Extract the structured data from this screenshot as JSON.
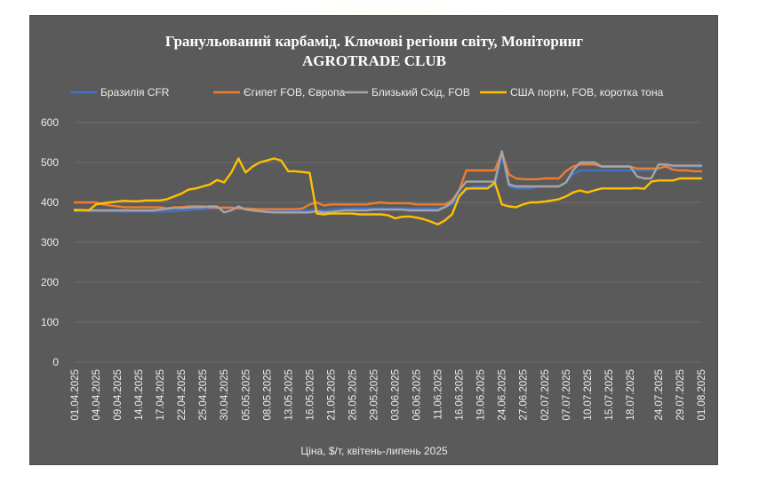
{
  "chart_data": {
    "type": "line",
    "title": "Гранульований карбамід. Ключові регіони світу, Моніторинг",
    "subtitle": "AGROTRADE CLUB",
    "xlabel": "Ціна, $/т, квітень-липень 2025",
    "ylabel": "",
    "ylim": [
      0,
      600
    ],
    "yticks": [
      "0",
      "100",
      "200",
      "300",
      "400",
      "500",
      "600"
    ],
    "grid": true,
    "legend_position": "top",
    "x": [
      "01.04.2025",
      "02.04.2025",
      "03.04.2025",
      "04.04.2025",
      "07.04.2025",
      "08.04.2025",
      "09.04.2025",
      "10.04.2025",
      "11.04.2025",
      "14.04.2025",
      "15.04.2025",
      "16.04.2025",
      "17.04.2025",
      "18.04.2025",
      "21.04.2025",
      "22.04.2025",
      "23.04.2025",
      "24.04.2025",
      "25.04.2025",
      "28.04.2025",
      "29.04.2025",
      "30.04.2025",
      "01.05.2025",
      "02.05.2025",
      "05.05.2025",
      "06.05.2025",
      "07.05.2025",
      "08.05.2025",
      "09.05.2025",
      "12.05.2025",
      "13.05.2025",
      "14.05.2025",
      "15.05.2025",
      "16.05.2025",
      "19.05.2025",
      "20.05.2025",
      "21.05.2025",
      "22.05.2025",
      "23.05.2025",
      "26.05.2025",
      "27.05.2025",
      "28.05.2025",
      "29.05.2025",
      "30.05.2025",
      "02.06.2025",
      "03.06.2025",
      "04.06.2025",
      "05.06.2025",
      "06.06.2025",
      "09.06.2025",
      "10.06.2025",
      "11.06.2025",
      "12.06.2025",
      "13.06.2025",
      "16.06.2025",
      "17.06.2025",
      "18.06.2025",
      "19.06.2025",
      "20.06.2025",
      "23.06.2025",
      "24.06.2025",
      "25.06.2025",
      "26.06.2025",
      "27.06.2025",
      "30.06.2025",
      "01.07.2025",
      "02.07.2025",
      "03.07.2025",
      "04.07.2025",
      "07.07.2025",
      "08.07.2025",
      "09.07.2025",
      "10.07.2025",
      "11.07.2025",
      "14.07.2025",
      "15.07.2025",
      "16.07.2025",
      "17.07.2025",
      "18.07.2025",
      "21.07.2025",
      "22.07.2025",
      "23.07.2025",
      "24.07.2025",
      "25.07.2025",
      "28.07.2025",
      "29.07.2025",
      "30.07.2025",
      "31.07.2025",
      "01.08.2025"
    ],
    "xtick_labels": [
      "01.04.2025",
      "04.04.2025",
      "09.04.2025",
      "14.04.2025",
      "17.04.2025",
      "22.04.2025",
      "25.04.2025",
      "30.04.2025",
      "05.05.2025",
      "08.05.2025",
      "13.05.2025",
      "16.05.2025",
      "21.05.2025",
      "26.05.2025",
      "29.05.2025",
      "03.06.2025",
      "06.06.2025",
      "11.06.2025",
      "16.06.2025",
      "19.06.2025",
      "24.06.2025",
      "27.06.2025",
      "02.07.2025",
      "07.07.2025",
      "10.07.2025",
      "15.07.2025",
      "18.07.2025",
      "24.07.2025",
      "29.07.2025",
      "01.08.2025"
    ],
    "series": [
      {
        "name": "Бразилія CFR",
        "color": "#4472c4",
        "values": [
          378,
          378,
          378,
          378,
          378,
          378,
          377,
          377,
          377,
          377,
          377,
          377,
          377,
          377,
          378,
          380,
          381,
          382,
          383,
          384,
          385,
          385,
          385,
          385,
          383,
          382,
          381,
          380,
          380,
          380,
          380,
          380,
          380,
          380,
          380,
          380,
          382,
          383,
          384,
          385,
          385,
          385,
          385,
          385,
          385,
          385,
          385,
          385,
          385,
          385,
          385,
          385,
          388,
          395,
          415,
          430,
          440,
          440,
          440,
          440,
          520,
          440,
          435,
          435,
          435,
          440,
          440,
          440,
          440,
          450,
          470,
          480,
          480,
          480,
          480,
          480,
          480,
          480,
          480,
          480,
          480,
          480,
          485,
          490,
          490,
          490,
          490,
          490,
          490
        ]
      },
      {
        "name": "Єгипет FOB, Європа",
        "color": "#ed7d31",
        "values": [
          400,
          400,
          400,
          400,
          395,
          392,
          390,
          388,
          388,
          388,
          388,
          388,
          388,
          385,
          388,
          388,
          390,
          390,
          390,
          388,
          387,
          387,
          387,
          385,
          385,
          384,
          383,
          383,
          383,
          383,
          383,
          383,
          385,
          395,
          400,
          392,
          395,
          395,
          395,
          395,
          395,
          395,
          398,
          400,
          398,
          398,
          398,
          398,
          395,
          395,
          395,
          395,
          395,
          405,
          430,
          480,
          480,
          480,
          480,
          480,
          525,
          470,
          460,
          458,
          458,
          458,
          460,
          460,
          460,
          478,
          490,
          495,
          495,
          495,
          490,
          490,
          490,
          490,
          490,
          485,
          485,
          485,
          485,
          490,
          482,
          480,
          480,
          478,
          478
        ]
      },
      {
        "name": "Близький Схід, FOB",
        "color": "#a5a5a5",
        "values": [
          382,
          381,
          380,
          380,
          380,
          380,
          380,
          380,
          380,
          380,
          380,
          380,
          382,
          384,
          386,
          386,
          387,
          388,
          388,
          390,
          390,
          375,
          380,
          390,
          382,
          380,
          378,
          376,
          375,
          375,
          375,
          375,
          375,
          375,
          378,
          375,
          376,
          378,
          380,
          380,
          380,
          380,
          382,
          382,
          382,
          382,
          382,
          380,
          380,
          380,
          380,
          380,
          388,
          400,
          430,
          452,
          452,
          452,
          452,
          452,
          528,
          445,
          440,
          440,
          440,
          440,
          440,
          440,
          440,
          450,
          480,
          500,
          500,
          500,
          490,
          490,
          490,
          490,
          490,
          465,
          460,
          460,
          495,
          495,
          492,
          492,
          492,
          492,
          492
        ]
      },
      {
        "name": "США порти, FOB, коротка тона",
        "color": "#ffc000",
        "values": [
          380,
          381,
          380,
          395,
          398,
          400,
          402,
          404,
          403,
          403,
          405,
          405,
          405,
          408,
          415,
          422,
          432,
          435,
          440,
          445,
          456,
          450,
          475,
          510,
          475,
          490,
          500,
          505,
          510,
          505,
          478,
          478,
          476,
          474,
          372,
          370,
          372,
          372,
          372,
          372,
          370,
          370,
          370,
          370,
          368,
          360,
          364,
          365,
          362,
          358,
          352,
          345,
          355,
          370,
          415,
          435,
          435,
          435,
          435,
          450,
          395,
          390,
          388,
          395,
          400,
          400,
          402,
          405,
          408,
          415,
          425,
          430,
          425,
          430,
          435,
          435,
          435,
          435,
          435,
          436,
          434,
          452,
          455,
          455,
          455,
          460,
          460,
          460,
          460
        ]
      }
    ]
  }
}
